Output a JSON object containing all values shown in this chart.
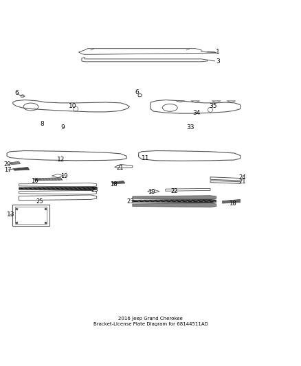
{
  "title": "2016 Jeep Grand Cherokee\nBracket-License Plate Diagram for 68144511AD",
  "background_color": "#ffffff",
  "line_color": "#555555",
  "text_color": "#000000"
}
